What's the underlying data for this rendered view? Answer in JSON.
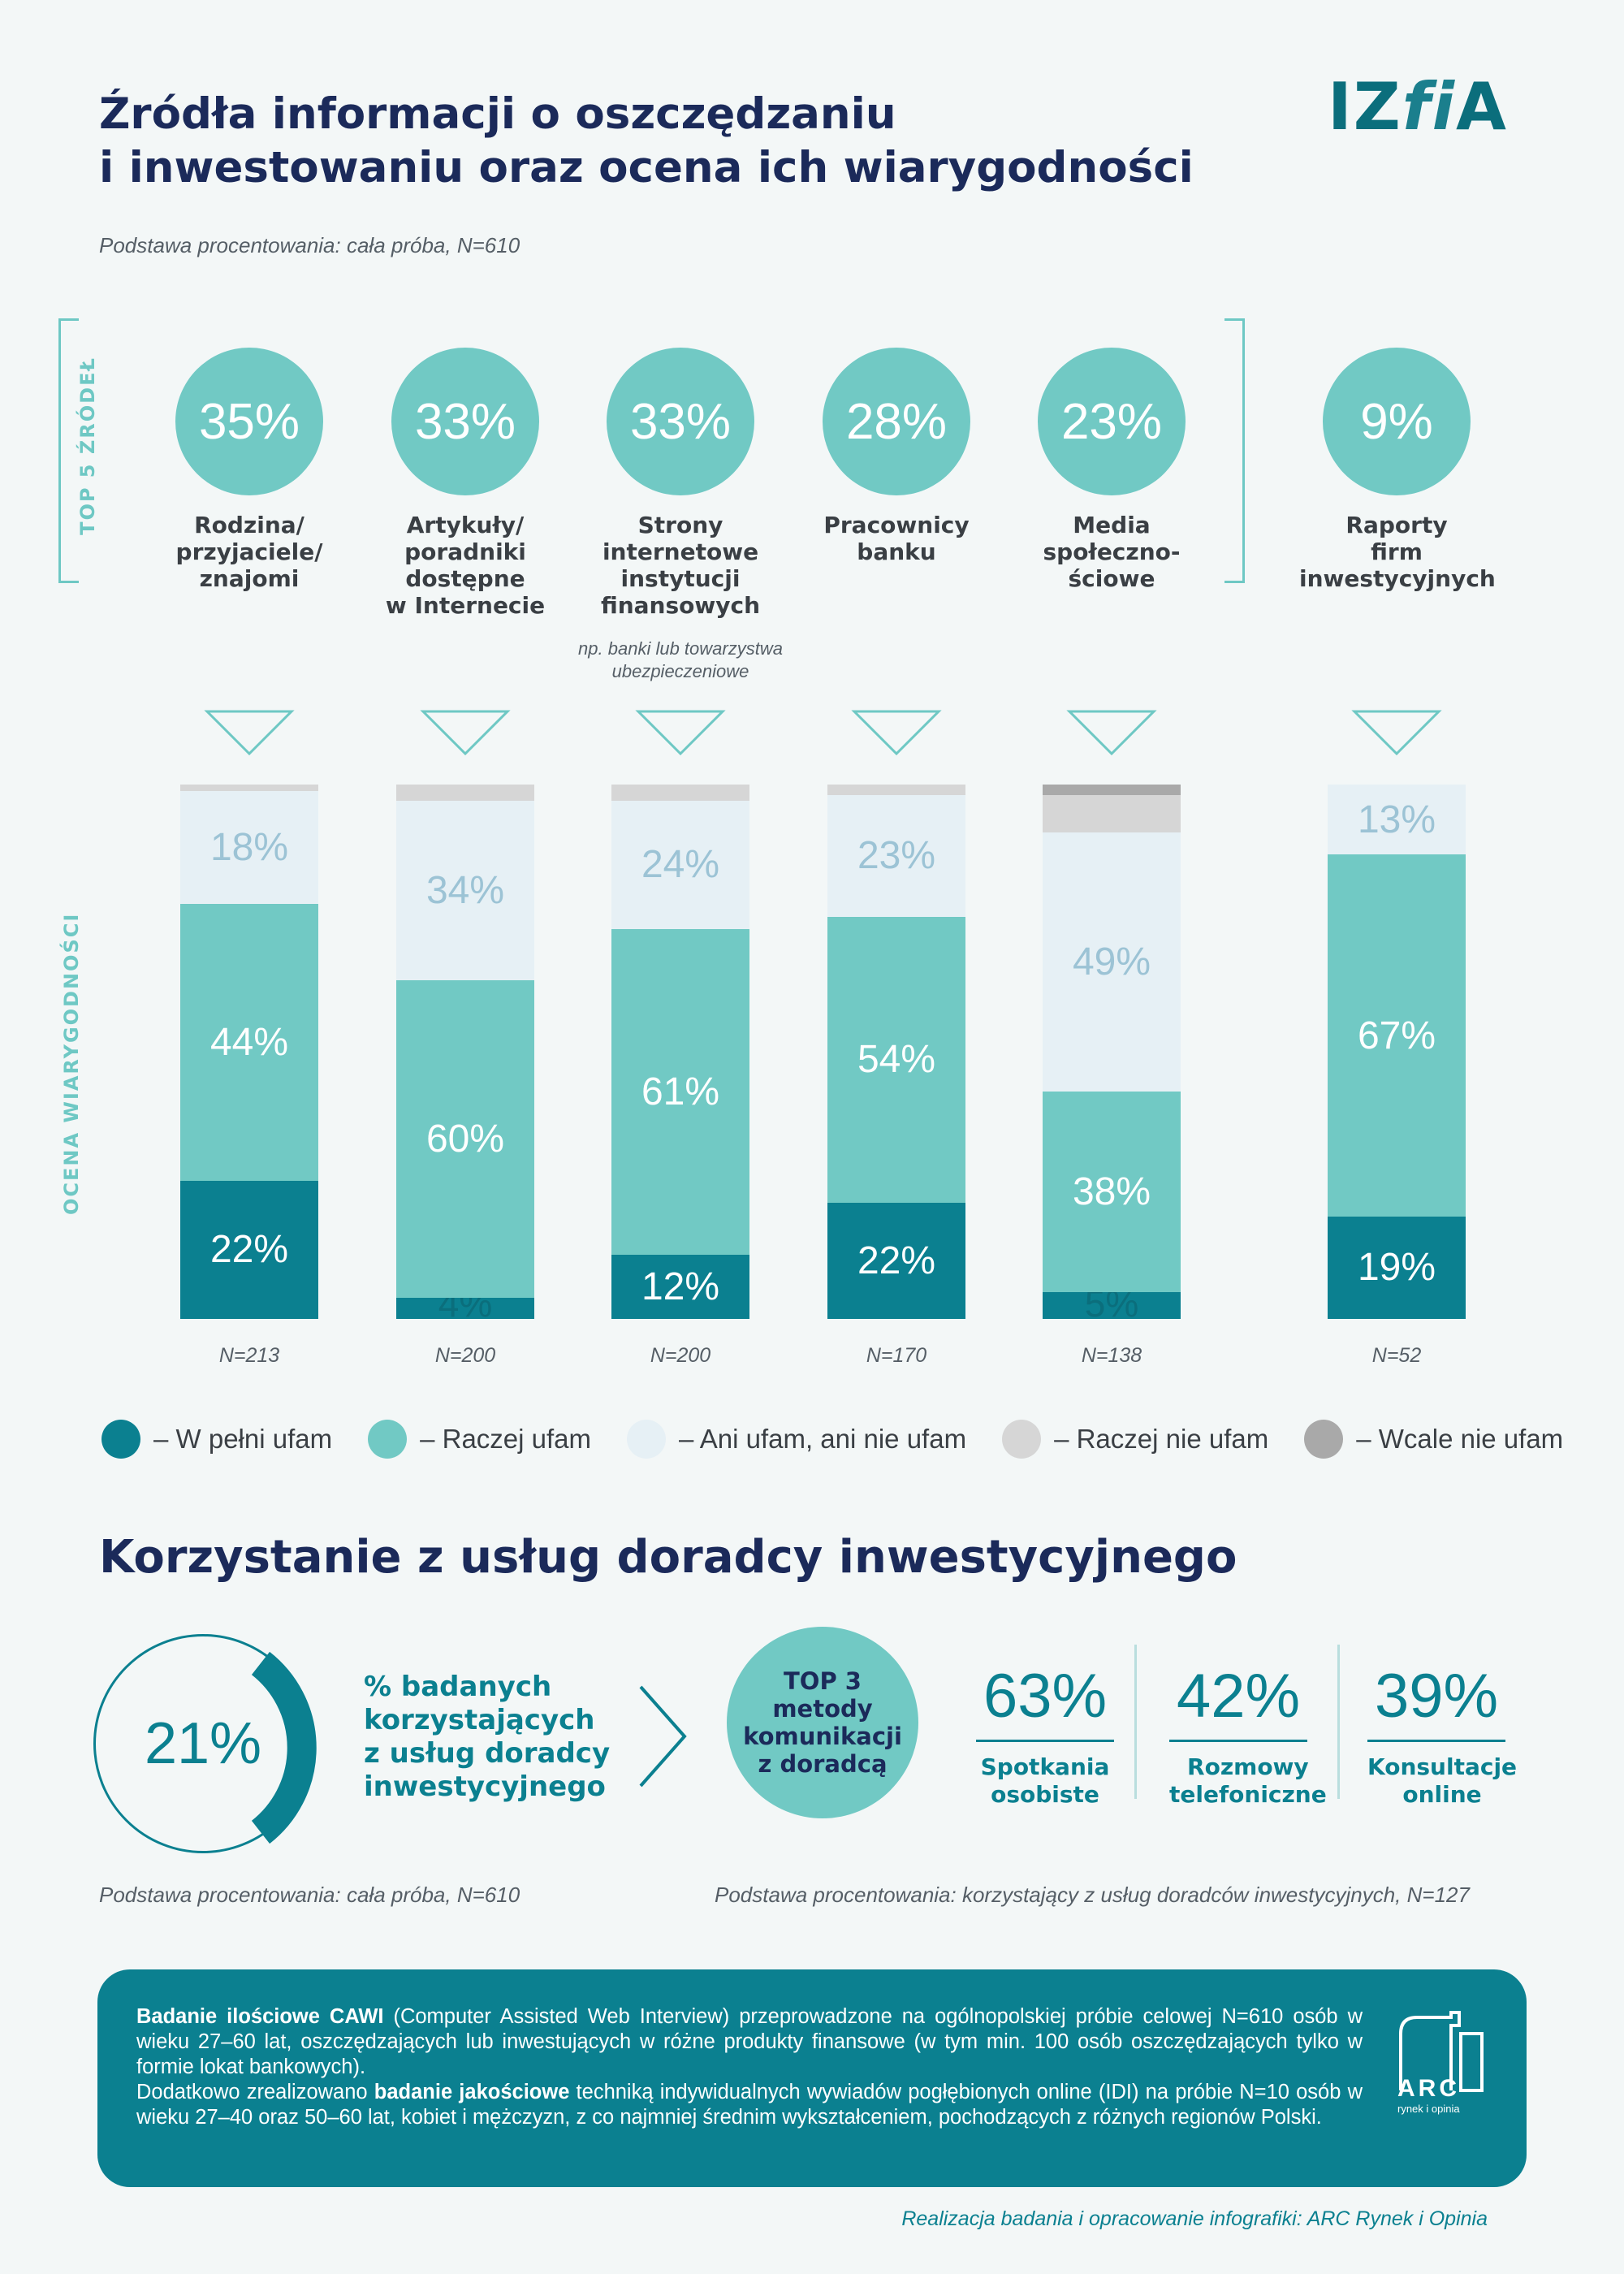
{
  "header": {
    "title_line1": "Źródła informacji o oszczędzaniu",
    "title_line2": "i inwestowaniu oraz ocena ich wiarygodności",
    "base_note": "Podstawa procentowania: cała próba, N=610",
    "logo_text_a": "IZ",
    "logo_text_b": "fi",
    "logo_text_c": "A"
  },
  "side_labels": {
    "top5": "TOP 5 ŹRÓDEŁ",
    "rating": "OCENA WIARYGODNOŚCI"
  },
  "colors": {
    "full_trust": "#0b8090",
    "rather_trust": "#71c9c4",
    "neutral": "#e6f0f5",
    "rather_not": "#d6d6d6",
    "not_at_all": "#a9a9a9"
  },
  "chart_data": {
    "type": "bar",
    "categories": [
      "Rodzina/\nprzyjaciele/\nznajomi",
      "Artykuły/\nporadniki\ndostępne\nw Internecie",
      "Strony\ninternetowe\ninstytucji\nfinansowych",
      "Pracownicy\nbanku",
      "Media\nspołeczno-\nściowe",
      "Raporty\nfirm\ninwestycyjnych"
    ],
    "usage_pct": [
      "35%",
      "33%",
      "33%",
      "28%",
      "23%",
      "9%"
    ],
    "category_note": "np. banki lub towarzystwa\nubezpieczeniowe",
    "n_labels": [
      "N=213",
      "N=200",
      "N=200",
      "N=170",
      "N=138",
      "N=52"
    ],
    "series": [
      {
        "name": "W pełni ufam",
        "values": [
          22,
          4,
          12,
          22,
          5,
          19
        ]
      },
      {
        "name": "Raczej ufam",
        "values": [
          44,
          60,
          61,
          54,
          38,
          67
        ]
      },
      {
        "name": "Ani ufam, ani nie ufam",
        "values": [
          18,
          34,
          24,
          23,
          49,
          13
        ]
      },
      {
        "name": "Raczej nie ufam",
        "values": [
          1,
          3,
          3,
          2,
          7,
          0
        ]
      },
      {
        "name": "Wcale nie ufam",
        "values": [
          0,
          0,
          0,
          0,
          2,
          0
        ]
      }
    ],
    "value_labels": [
      [
        "22%",
        "44%",
        "18%",
        "",
        ""
      ],
      [
        "4%",
        "60%",
        "34%",
        "",
        ""
      ],
      [
        "12%",
        "61%",
        "24%",
        "",
        ""
      ],
      [
        "22%",
        "54%",
        "23%",
        "",
        ""
      ],
      [
        "5%",
        "38%",
        "49%",
        "",
        ""
      ],
      [
        "19%",
        "67%",
        "13%",
        "",
        ""
      ]
    ],
    "stacked": true,
    "legend_position": "bottom"
  },
  "legend": [
    "– W pełni ufam",
    "– Raczej ufam",
    "– Ani ufam, ani nie ufam",
    "– Raczej nie ufam",
    "– Wcale nie ufam"
  ],
  "advisor": {
    "heading": "Korzystanie z usług doradcy inwestycyjnego",
    "pct": "21%",
    "pct_text": "% badanych\nkorzystających\nz usług doradcy\ninwestycyjnego",
    "top3": "TOP 3\nmetody\nkomunikacji\nz doradcą",
    "methods": [
      {
        "value": "63%",
        "label": "Spotkania\nosobiste"
      },
      {
        "value": "42%",
        "label": "Rozmowy\ntelefoniczne"
      },
      {
        "value": "39%",
        "label": "Konsultacje\nonline"
      }
    ],
    "base_left": "Podstawa procentowania: cała próba, N=610",
    "base_right": "Podstawa procentowania: korzystający z usług doradców inwestycyjnych, N=127"
  },
  "footer": {
    "p1_bold": "Badanie ilościowe CAWI",
    "p1_rest": " (Computer Assisted Web Interview) przeprowadzone na ogólnopolskiej próbie celowej N=610 osób w wieku 27–60 lat, oszczędzających lub inwestujących w różne produkty finansowe (w tym min. 100 osób oszczędzających tylko w formie lokat bankowych).",
    "p2_start": "Dodatkowo zrealizowano ",
    "p2_bold": "badanie jakościowe",
    "p2_rest": " techniką indywidualnych wywiadów pogłębionych online (IDI) na próbie N=10 osób w wieku 27–40 oraz 50–60 lat, kobiet i mężczyzn, z co najmniej średnim wykształceniem, pochodzących z różnych regionów Polski.",
    "arc_logo": "ARC",
    "arc_sub": "rynek i opinia",
    "credit": "Realizacja badania i opracowanie infografiki: ARC Rynek i Opinia"
  }
}
